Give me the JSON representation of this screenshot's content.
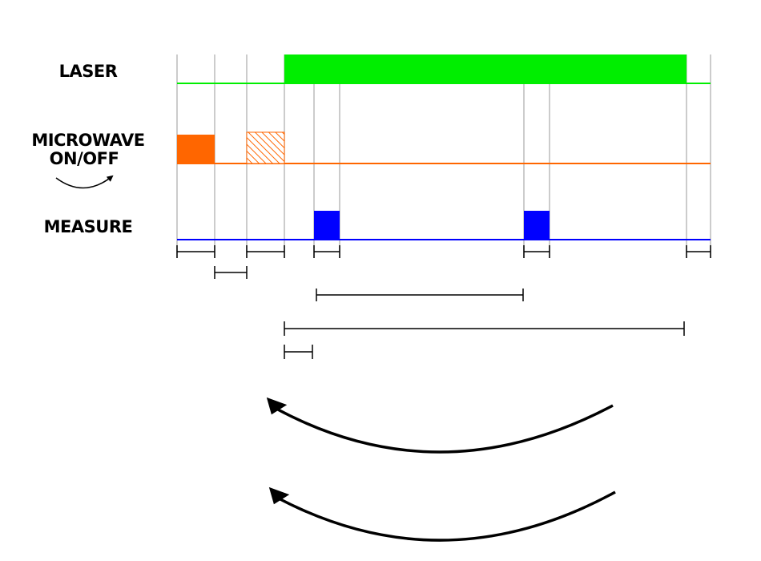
{
  "rows": {
    "laser": {
      "label": "LASER",
      "color": "#00ee00"
    },
    "microwave": {
      "label_line1": "MICROWAVE",
      "label_line2": "ON/OFF",
      "color": "#ff6600"
    },
    "measure": {
      "label": "MEASURE",
      "color": "#0000ff"
    }
  },
  "colors": {
    "gridline": "#bbbbbb",
    "interval": "#000000",
    "arrow": "#000000"
  }
}
